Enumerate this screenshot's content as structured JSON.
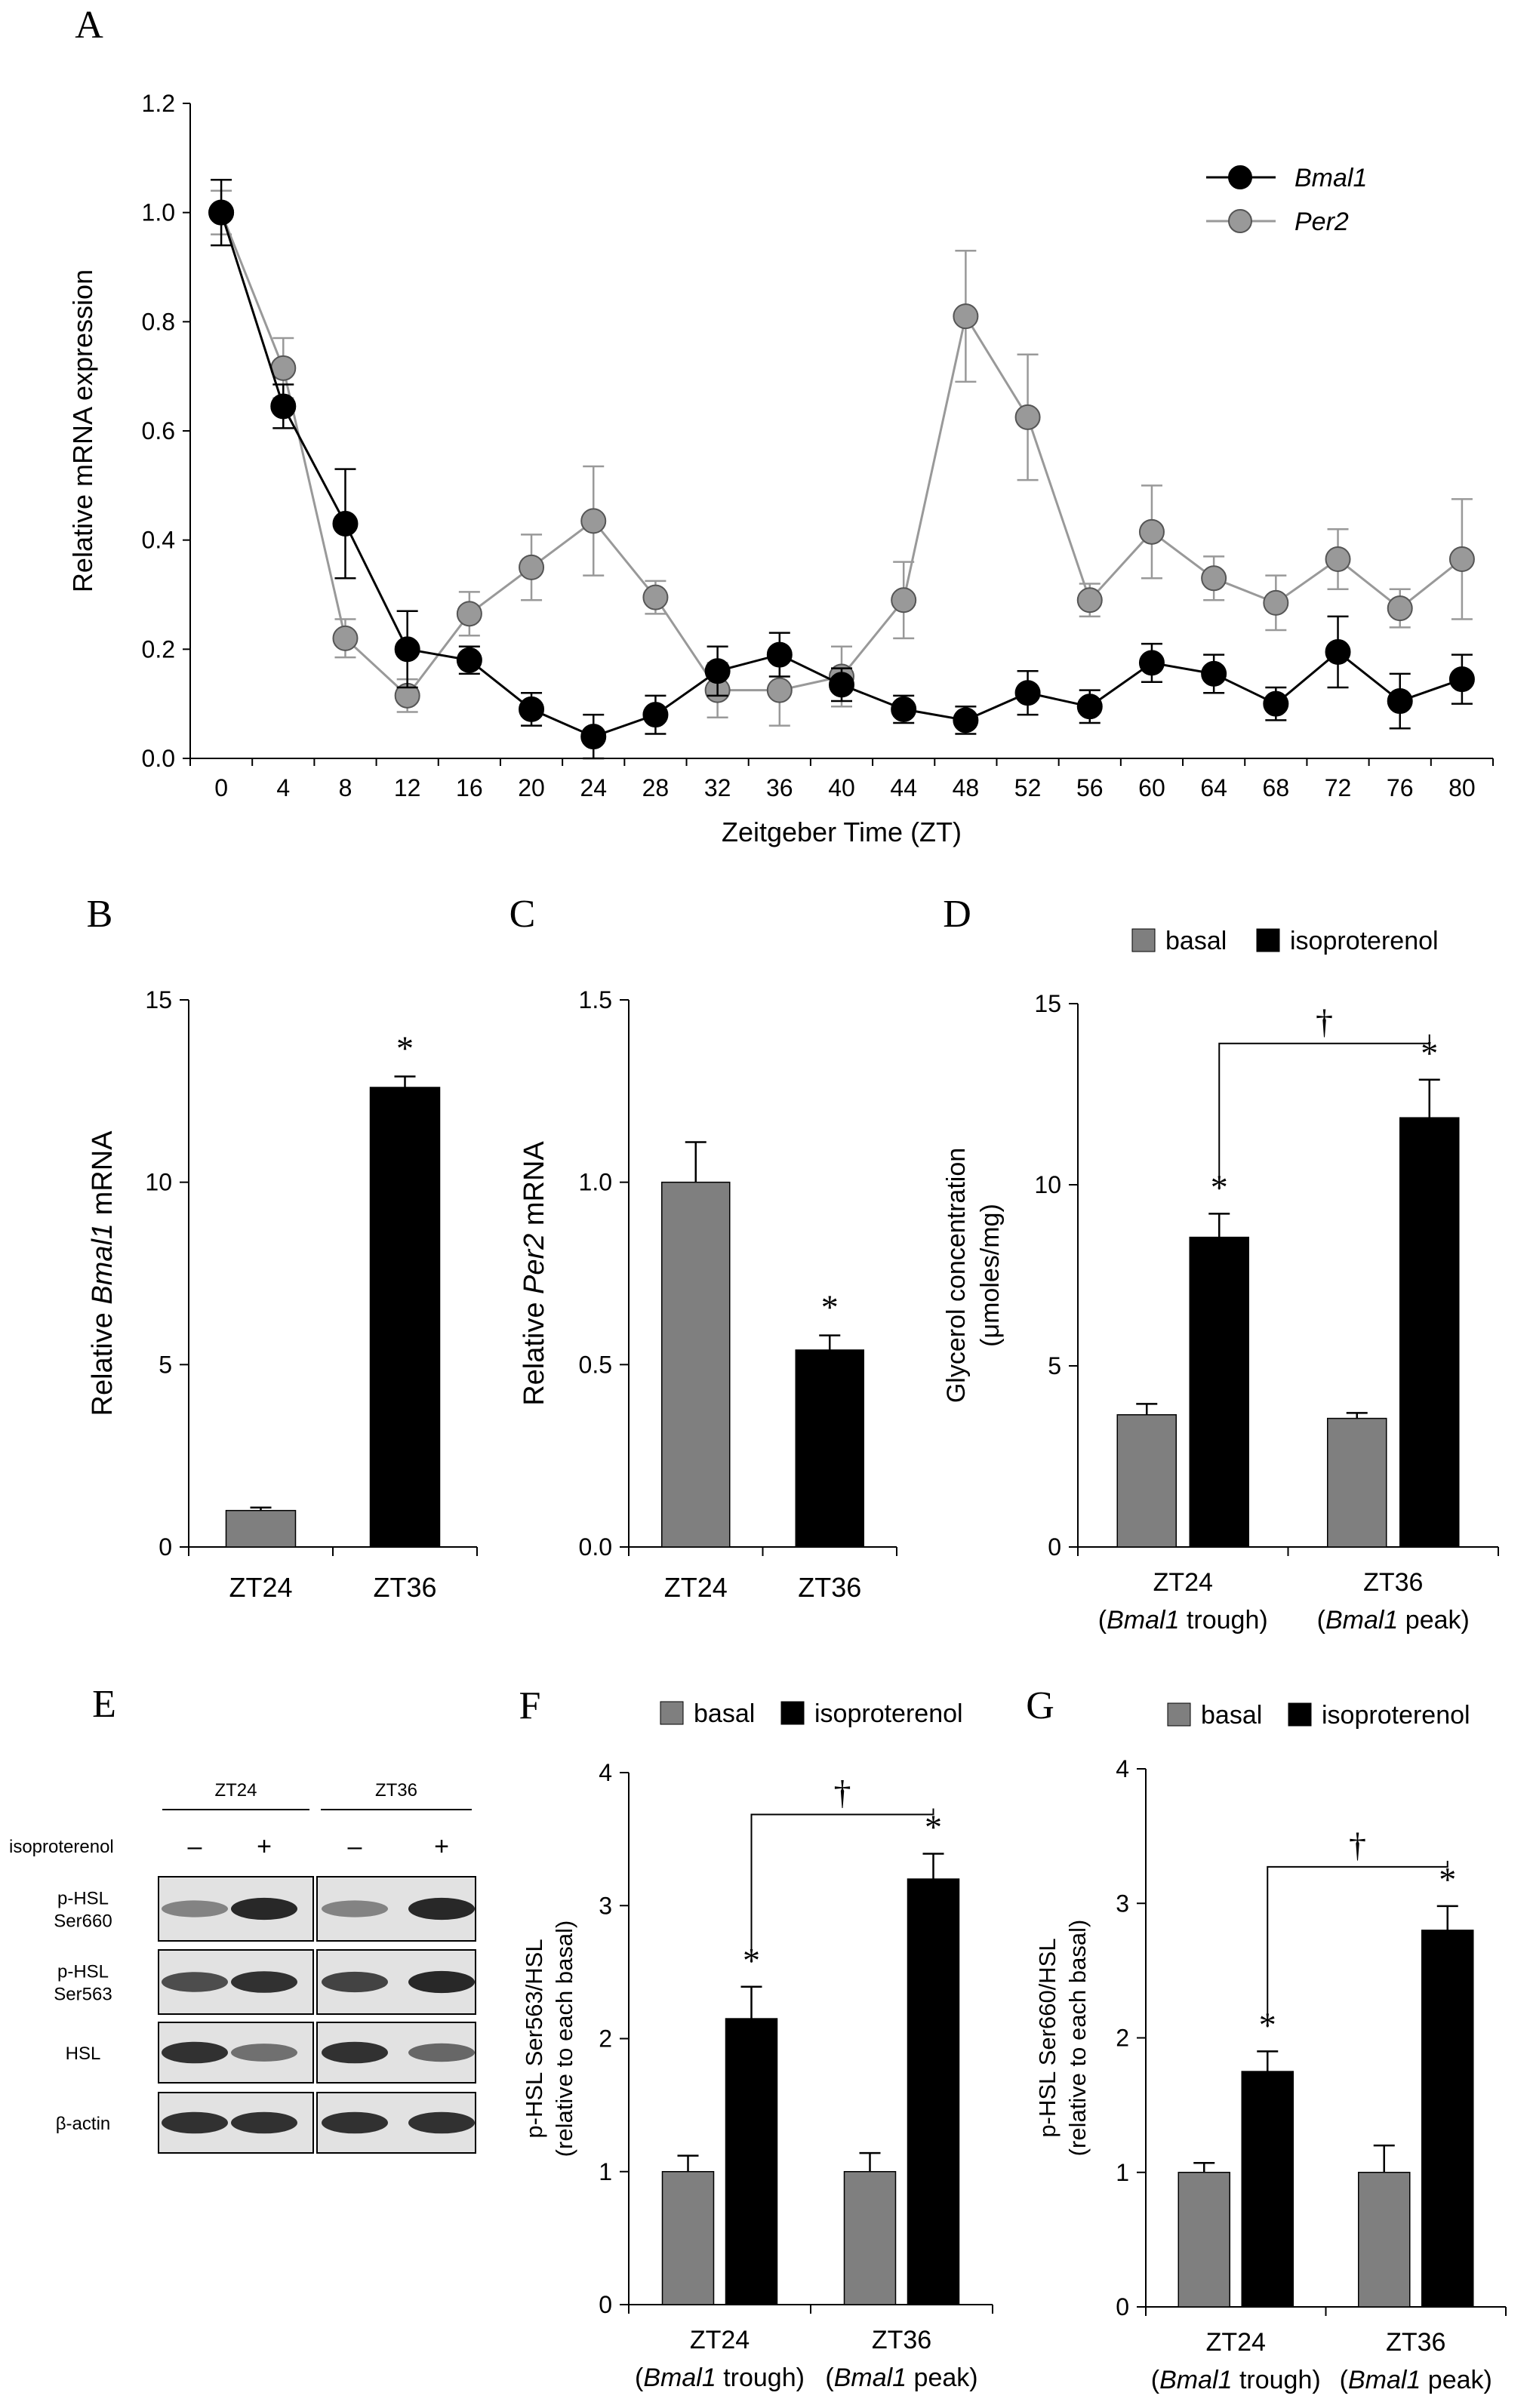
{
  "colors": {
    "black": "#000000",
    "grey": "#808080",
    "grey_light": "#999999",
    "bar_grey": "#7f7f7f"
  },
  "panels": {
    "A": {
      "letter": "A",
      "chart_data": {
        "type": "line",
        "xlabel": "Zeitgeber Time (ZT)",
        "ylabel": "Relative mRNA expression",
        "ylim": [
          0,
          1.2
        ],
        "yticks": [
          "0.0",
          "0.2",
          "0.4",
          "0.6",
          "0.8",
          "1.0",
          "1.2"
        ],
        "x": [
          0,
          4,
          8,
          12,
          16,
          20,
          24,
          28,
          32,
          36,
          40,
          44,
          48,
          52,
          56,
          60,
          64,
          68,
          72,
          76,
          80
        ],
        "xtick_labels": [
          "0",
          "4",
          "8",
          "12",
          "16",
          "20",
          "24",
          "28",
          "32",
          "36",
          "40",
          "44",
          "48",
          "52",
          "56",
          "60",
          "64",
          "68",
          "72",
          "76",
          "80"
        ],
        "series": [
          {
            "name": "Bmal1",
            "color": "#000000",
            "values": [
              1.0,
              0.645,
              0.43,
              0.2,
              0.18,
              0.09,
              0.04,
              0.08,
              0.16,
              0.19,
              0.135,
              0.09,
              0.07,
              0.12,
              0.095,
              0.175,
              0.155,
              0.1,
              0.195,
              0.105,
              0.145
            ],
            "errors": [
              0.06,
              0.04,
              0.1,
              0.07,
              0.025,
              0.03,
              0.04,
              0.035,
              0.045,
              0.04,
              0.03,
              0.025,
              0.025,
              0.04,
              0.03,
              0.035,
              0.035,
              0.03,
              0.065,
              0.05,
              0.045
            ]
          },
          {
            "name": "Per2",
            "color": "#999999",
            "values": [
              1.0,
              0.715,
              0.22,
              0.115,
              0.265,
              0.35,
              0.435,
              0.295,
              0.125,
              0.125,
              0.15,
              0.29,
              0.81,
              0.625,
              0.29,
              0.415,
              0.33,
              0.285,
              0.365,
              0.275,
              0.365
            ],
            "errors": [
              0.04,
              0.055,
              0.035,
              0.03,
              0.04,
              0.06,
              0.1,
              0.03,
              0.05,
              0.065,
              0.055,
              0.07,
              0.12,
              0.115,
              0.03,
              0.085,
              0.04,
              0.05,
              0.055,
              0.035,
              0.11
            ]
          }
        ],
        "legend": [
          {
            "label": "Bmal1",
            "color": "#000000"
          },
          {
            "label": "Per2",
            "color": "#999999"
          }
        ]
      }
    },
    "B": {
      "letter": "B",
      "chart_data": {
        "type": "bar",
        "categories": [
          "ZT24",
          "ZT36"
        ],
        "values": [
          1.0,
          12.6
        ],
        "errors": [
          0.08,
          0.3
        ],
        "colors": [
          "#7f7f7f",
          "#000000"
        ],
        "ylabel_prefix": "Relative ",
        "ylabel_italic": "Bmal1",
        "ylabel_suffix": " mRNA",
        "ylim": [
          0,
          15
        ],
        "yticks": [
          "0",
          "5",
          "10",
          "15"
        ],
        "annotations": [
          "*"
        ]
      }
    },
    "C": {
      "letter": "C",
      "chart_data": {
        "type": "bar",
        "categories": [
          "ZT24",
          "ZT36"
        ],
        "values": [
          1.0,
          0.54
        ],
        "errors": [
          0.11,
          0.04
        ],
        "colors": [
          "#7f7f7f",
          "#000000"
        ],
        "ylabel_prefix": "Relative ",
        "ylabel_italic": "Per2",
        "ylabel_suffix": " mRNA",
        "ylim": [
          0,
          1.5
        ],
        "yticks": [
          "0.0",
          "0.5",
          "1.0",
          "1.5"
        ],
        "annotations": [
          "*"
        ]
      }
    },
    "D": {
      "letter": "D",
      "chart_data": {
        "type": "bar",
        "categories": [
          "ZT24",
          "ZT36"
        ],
        "subcategories": [
          {
            "italic": "Bmal1",
            "suffix": " trough"
          },
          {
            "italic": "Bmal1",
            "suffix": " peak"
          }
        ],
        "series": [
          {
            "name": "basal",
            "color": "#7f7f7f",
            "values": [
              3.65,
              3.55
            ],
            "errors": [
              0.3,
              0.15
            ]
          },
          {
            "name": "isoproterenol",
            "color": "#000000",
            "values": [
              8.55,
              11.85
            ],
            "errors": [
              0.65,
              1.05
            ]
          }
        ],
        "ylabel_line1": "Glycerol concentration",
        "ylabel_line2": "(μmoles/mg)",
        "ylim": [
          0,
          15
        ],
        "yticks": [
          "0",
          "5",
          "10",
          "15"
        ],
        "annotations": [
          "*",
          "*",
          "†"
        ]
      }
    },
    "E": {
      "letter": "E",
      "groups": [
        "ZT24",
        "ZT36"
      ],
      "treatment_label": "isoproterenol",
      "treatment_marks": [
        "–",
        "+",
        "–",
        "+"
      ],
      "row_labels": [
        {
          "line1": "p-HSL",
          "line2": "Ser660"
        },
        {
          "line1": "p-HSL",
          "line2": "Ser563"
        },
        {
          "line1": "HSL",
          "line2": ""
        },
        {
          "line1": "β-actin",
          "line2": ""
        }
      ],
      "band_intensity": [
        [
          0.45,
          0.95,
          0.45,
          0.95
        ],
        [
          0.75,
          0.9,
          0.8,
          0.95
        ],
        [
          0.9,
          0.55,
          0.9,
          0.6
        ],
        [
          0.9,
          0.9,
          0.9,
          0.9
        ]
      ]
    },
    "F": {
      "letter": "F",
      "chart_data": {
        "type": "bar",
        "categories": [
          "ZT24",
          "ZT36"
        ],
        "subcategories": [
          {
            "italic": "Bmal1",
            "suffix": " trough"
          },
          {
            "italic": "Bmal1",
            "suffix": " peak"
          }
        ],
        "series": [
          {
            "name": "basal",
            "color": "#7f7f7f",
            "values": [
              1.0,
              1.0
            ],
            "errors": [
              0.12,
              0.14
            ]
          },
          {
            "name": "isoproterenol",
            "color": "#000000",
            "values": [
              2.15,
              3.2
            ],
            "errors": [
              0.24,
              0.19
            ]
          }
        ],
        "ylabel_line1": "p-HSL Ser563/HSL",
        "ylabel_line2": "(relative to each basal)",
        "ylim": [
          0,
          4
        ],
        "yticks": [
          "0",
          "1",
          "2",
          "3",
          "4"
        ],
        "annotations": [
          "*",
          "*",
          "†"
        ]
      }
    },
    "G": {
      "letter": "G",
      "chart_data": {
        "type": "bar",
        "categories": [
          "ZT24",
          "ZT36"
        ],
        "subcategories": [
          {
            "italic": "Bmal1",
            "suffix": " trough"
          },
          {
            "italic": "Bmal1",
            "suffix": " peak"
          }
        ],
        "series": [
          {
            "name": "basal",
            "color": "#7f7f7f",
            "values": [
              1.0,
              1.0
            ],
            "errors": [
              0.07,
              0.2
            ]
          },
          {
            "name": "isoproterenol",
            "color": "#000000",
            "values": [
              1.75,
              2.8
            ],
            "errors": [
              0.15,
              0.18
            ]
          }
        ],
        "ylabel_line1": "p-HSL Ser660/HSL",
        "ylabel_line2": "(relative to each basal)",
        "ylim": [
          0,
          4
        ],
        "yticks": [
          "0",
          "1",
          "2",
          "3",
          "4"
        ],
        "annotations": [
          "*",
          "*",
          "†"
        ]
      }
    }
  }
}
